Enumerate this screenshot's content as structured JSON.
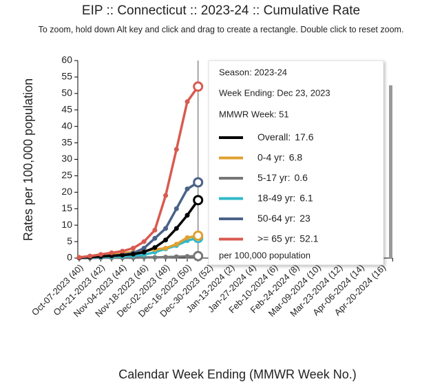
{
  "chart_data": {
    "type": "line",
    "title": "EIP :: Connecticut :: 2023-24 :: Cumulative Rate",
    "subtitle": "To zoom, hold down Alt key and click and drag to create a rectangle. Double click to reset zoom.",
    "ylabel": "Rates per 100,000 population",
    "xlabel": "Calendar Week Ending (MMWR Week No.)",
    "categories": [
      "Oct-07-2023 (40)",
      null,
      "Oct-21-2023 (42)",
      null,
      "Nov-04-2023 (44)",
      null,
      "Nov-18-2023 (46)",
      null,
      "Dec-02-2023 (48)",
      null,
      "Dec-16-2023 (50)",
      null,
      "Dec-30-2023 (52)",
      null,
      "Jan-13-2024 (2)",
      null,
      "Jan-27-2024 (4)",
      null,
      "Feb-10-2024 (6)",
      null,
      "Feb-24-2024 (8)",
      null,
      "Mar-09-2024 (10)",
      null,
      "Mar-23-2024 (12)",
      null,
      "Apr-06-2024 (14)",
      null,
      "Apr-20-2024 (16)",
      null
    ],
    "ylim": [
      0,
      60
    ],
    "yticks": [
      0,
      5,
      10,
      15,
      20,
      25,
      30,
      35,
      40,
      45,
      50,
      55,
      60
    ],
    "series": [
      {
        "name": "Overall:",
        "color": "#000000",
        "values": [
          0.1,
          0.3,
          0.5,
          0.7,
          0.9,
          1.2,
          1.8,
          3.2,
          5.5,
          9,
          13,
          17.6,
          null,
          null,
          null,
          null,
          null,
          null,
          null,
          null,
          null,
          null,
          null,
          null,
          null,
          null,
          null,
          null,
          null,
          null
        ]
      },
      {
        "name": "0-4 yr:",
        "color": "#e0a030",
        "values": [
          0.2,
          0.4,
          0.8,
          1.2,
          1.5,
          1.8,
          2.2,
          2.6,
          3,
          4.2,
          6.2,
          6.8,
          null,
          null,
          null,
          null,
          null,
          null,
          null,
          null,
          null,
          null,
          null,
          null,
          null,
          null,
          null,
          null,
          null,
          null
        ]
      },
      {
        "name": "5-17 yr:",
        "color": "#777777",
        "values": [
          0,
          0,
          0.1,
          0.1,
          0.1,
          0.1,
          0.2,
          0.2,
          0.3,
          0.4,
          0.5,
          0.6,
          null,
          null,
          null,
          null,
          null,
          null,
          null,
          null,
          null,
          null,
          null,
          null,
          null,
          null,
          null,
          null,
          null,
          null
        ]
      },
      {
        "name": "18-49 yr:",
        "color": "#30b8c8",
        "values": [
          0.1,
          0.2,
          0.3,
          0.4,
          0.5,
          0.7,
          1,
          1.8,
          2.8,
          3.8,
          5.3,
          6.1,
          null,
          null,
          null,
          null,
          null,
          null,
          null,
          null,
          null,
          null,
          null,
          null,
          null,
          null,
          null,
          null,
          null,
          null
        ]
      },
      {
        "name": "50-64 yr:",
        "color": "#4a6288",
        "values": [
          0.1,
          0.3,
          0.5,
          0.7,
          1,
          1.5,
          3,
          6,
          9,
          15,
          21,
          23,
          null,
          null,
          null,
          null,
          null,
          null,
          null,
          null,
          null,
          null,
          null,
          null,
          null,
          null,
          null,
          null,
          null,
          null
        ]
      },
      {
        "name": ">= 65 yr:",
        "color": "#d95a50",
        "values": [
          0.2,
          0.6,
          1.1,
          1.6,
          2.1,
          3,
          5,
          8.5,
          19,
          33,
          47.5,
          52.1,
          null,
          null,
          null,
          null,
          null,
          null,
          null,
          null,
          null,
          null,
          null,
          null,
          null,
          null,
          null,
          null,
          null,
          null
        ]
      }
    ],
    "tooltip": {
      "season": "Season: 2023-24",
      "week_ending": "Week Ending: Dec 23, 2023",
      "mmwr_week": "MMWR Week: 51",
      "index": 11,
      "footer": "per 100,000 population"
    }
  }
}
